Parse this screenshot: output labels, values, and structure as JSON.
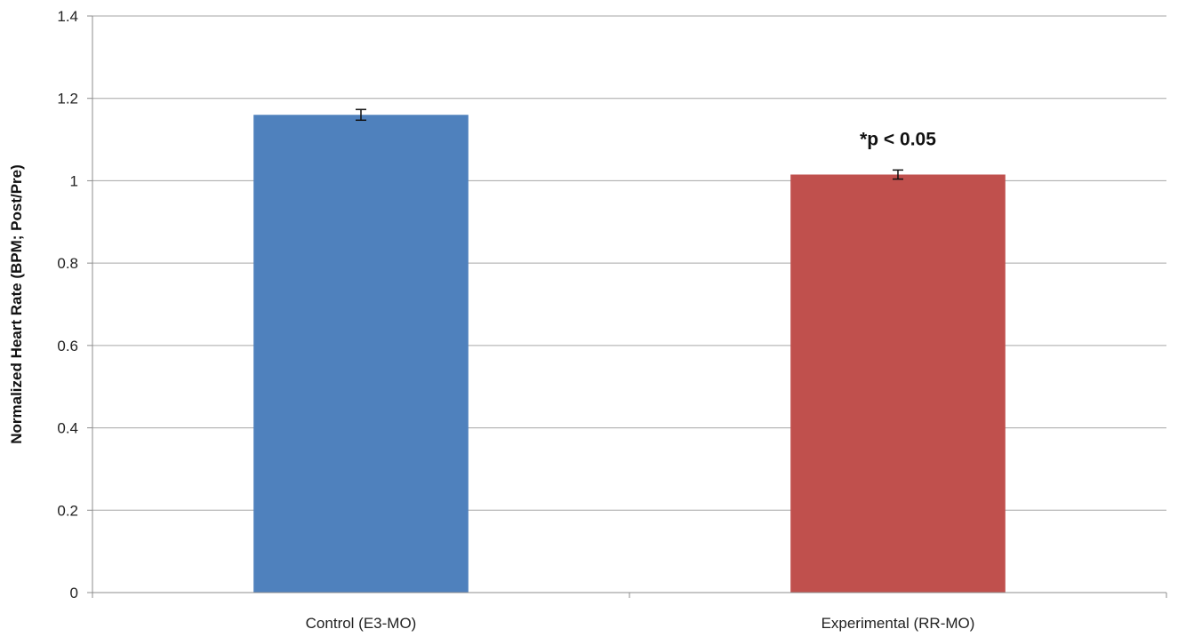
{
  "chart_data": {
    "type": "bar",
    "title": "",
    "xlabel": "",
    "ylabel": "Normalized Heart Rate (BPM; Post/Pre)",
    "ylim": [
      0,
      1.4
    ],
    "yticks": [
      0,
      0.2,
      0.4,
      0.6,
      0.8,
      1,
      1.2,
      1.4
    ],
    "ytick_labels": [
      "0",
      "0.2",
      "0.4",
      "0.6",
      "0.8",
      "1",
      "1.2",
      "1.4"
    ],
    "grid": true,
    "legend": "none",
    "categories": [
      "Control (E3-MO)",
      "Experimental (RR-MO)"
    ],
    "values": [
      1.16,
      1.015
    ],
    "errors": [
      0.013,
      0.011
    ],
    "colors": [
      "#4f81bd",
      "#c0504d"
    ],
    "annotations": [
      {
        "category_index": 1,
        "text": "*p < 0.05"
      }
    ]
  }
}
